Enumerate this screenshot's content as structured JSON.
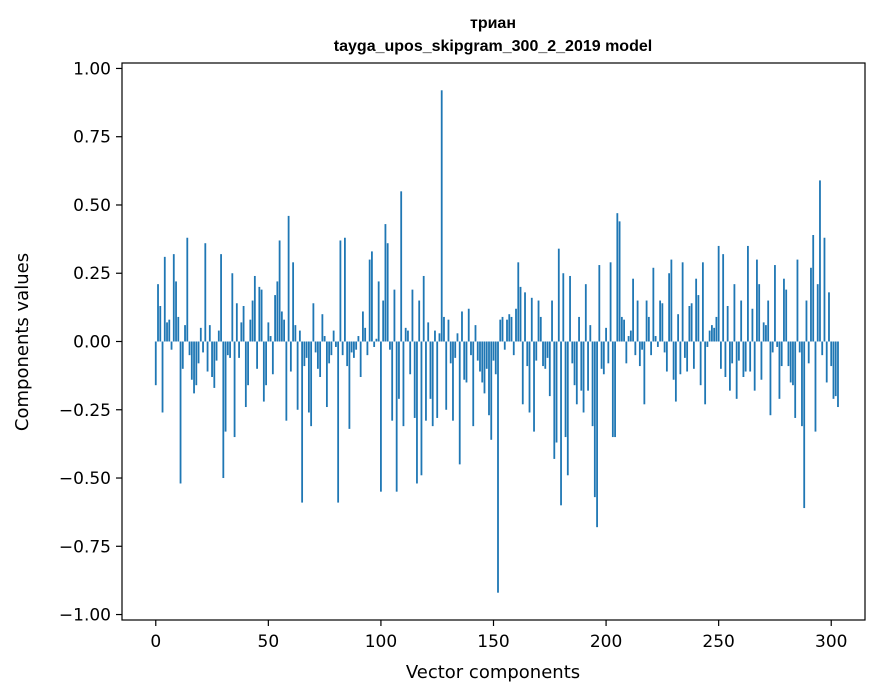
{
  "chart_data": {
    "type": "bar",
    "title": "триан",
    "subtitle": "tayga_upos_skipgram_300_2_2019 model",
    "xlabel": "Vector components",
    "ylabel": "Components values",
    "xlim": [
      -15,
      315
    ],
    "ylim": [
      -1.02,
      1.02
    ],
    "xticks": [
      0,
      50,
      100,
      150,
      200,
      250,
      300
    ],
    "xtick_labels": [
      "0",
      "50",
      "100",
      "150",
      "200",
      "250",
      "300"
    ],
    "yticks": [
      1.0,
      0.75,
      0.5,
      0.25,
      0.0,
      -0.25,
      -0.5,
      -0.75,
      -1.0
    ],
    "ytick_labels": [
      "1.00",
      "0.75",
      "0.50",
      "0.25",
      "0.00",
      "−0.25",
      "−0.50",
      "−0.75",
      "−1.00"
    ],
    "bar_color": "#1f77b4",
    "grid": false,
    "values": [
      -0.16,
      0.21,
      0.13,
      -0.26,
      0.31,
      0.07,
      0.08,
      -0.03,
      0.32,
      0.22,
      0.09,
      -0.52,
      -0.1,
      0.06,
      0.38,
      -0.05,
      -0.14,
      -0.19,
      -0.16,
      -0.08,
      0.05,
      -0.04,
      0.36,
      -0.11,
      0.06,
      -0.13,
      -0.17,
      -0.07,
      0.04,
      0.32,
      -0.5,
      -0.33,
      -0.05,
      -0.06,
      0.25,
      -0.35,
      0.14,
      -0.06,
      0.07,
      0.13,
      -0.24,
      -0.16,
      0.08,
      0.15,
      0.24,
      -0.1,
      0.2,
      0.19,
      -0.22,
      -0.16,
      0.07,
      0.02,
      -0.12,
      0.17,
      0.22,
      0.37,
      0.11,
      0.08,
      -0.29,
      0.46,
      -0.11,
      0.29,
      0.06,
      -0.25,
      0.04,
      -0.59,
      -0.09,
      -0.06,
      -0.26,
      -0.31,
      0.14,
      -0.04,
      -0.1,
      -0.13,
      0.1,
      0.02,
      -0.24,
      -0.08,
      -0.05,
      0.04,
      -0.02,
      -0.59,
      0.37,
      -0.05,
      0.38,
      -0.09,
      -0.32,
      -0.04,
      -0.06,
      -0.03,
      0.02,
      -0.13,
      0.11,
      0.05,
      -0.05,
      0.3,
      0.33,
      -0.02,
      0.01,
      0.22,
      -0.55,
      0.15,
      0.43,
      0.36,
      -0.03,
      -0.29,
      0.19,
      -0.55,
      -0.21,
      0.55,
      -0.31,
      0.05,
      0.04,
      -0.12,
      0.19,
      -0.28,
      -0.52,
      0.15,
      -0.49,
      0.24,
      -0.29,
      0.07,
      -0.21,
      -0.31,
      0.04,
      -0.28,
      0.03,
      0.92,
      0.09,
      -0.25,
      0.08,
      -0.08,
      -0.29,
      -0.06,
      0.03,
      -0.45,
      0.11,
      -0.14,
      -0.15,
      0.12,
      -0.05,
      -0.31,
      0.06,
      -0.07,
      -0.11,
      -0.15,
      -0.19,
      -0.1,
      -0.27,
      -0.36,
      -0.07,
      -0.12,
      -0.92,
      0.08,
      0.09,
      -0.03,
      0.08,
      0.1,
      0.09,
      -0.05,
      0.12,
      0.29,
      0.2,
      -0.23,
      0.18,
      -0.09,
      -0.26,
      0.16,
      -0.33,
      -0.07,
      0.15,
      0.09,
      -0.09,
      -0.1,
      -0.06,
      -0.2,
      0.15,
      -0.43,
      -0.37,
      0.34,
      -0.6,
      0.25,
      -0.35,
      -0.49,
      0.24,
      -0.08,
      -0.16,
      -0.23,
      0.09,
      -0.18,
      -0.26,
      0.21,
      -0.18,
      0.06,
      -0.31,
      -0.57,
      -0.68,
      0.28,
      -0.1,
      -0.12,
      0.05,
      -0.08,
      0.29,
      -0.35,
      -0.35,
      0.47,
      0.44,
      0.09,
      0.08,
      -0.08,
      0.02,
      0.04,
      0.23,
      -0.05,
      0.15,
      -0.09,
      -0.03,
      -0.23,
      0.15,
      0.09,
      -0.05,
      0.27,
      0.02,
      -0.02,
      0.15,
      0.14,
      -0.04,
      -0.11,
      0.25,
      0.3,
      -0.14,
      -0.22,
      0.1,
      -0.12,
      0.29,
      -0.06,
      -0.11,
      0.13,
      0.14,
      -0.1,
      0.23,
      0.17,
      -0.16,
      0.29,
      -0.23,
      -0.02,
      0.04,
      0.06,
      0.05,
      0.09,
      0.35,
      -0.1,
      0.32,
      -0.13,
      0.13,
      -0.18,
      -0.08,
      0.21,
      -0.21,
      -0.07,
      0.15,
      -0.13,
      -0.11,
      0.35,
      -0.11,
      0.12,
      -0.18,
      0.3,
      0.21,
      -0.14,
      0.07,
      0.06,
      0.15,
      -0.27,
      -0.04,
      0.28,
      -0.02,
      -0.21,
      -0.09,
      0.23,
      0.19,
      -0.09,
      -0.15,
      -0.16,
      -0.28,
      0.3,
      -0.04,
      -0.31,
      -0.61,
      0.15,
      -0.08,
      0.27,
      0.39,
      -0.33,
      0.21,
      0.59,
      -0.05,
      0.38,
      -0.15,
      0.18,
      -0.09,
      -0.21,
      -0.2,
      -0.24
    ]
  }
}
